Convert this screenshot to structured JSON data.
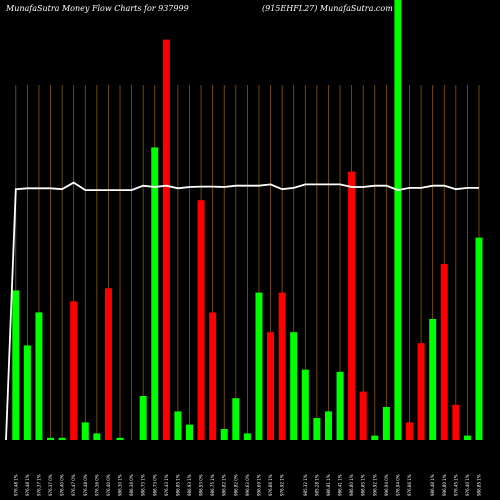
{
  "header": {
    "title_left": "MunafaSutra  Money Flow  Charts for 937999",
    "title_right": "(915EHFL27) MunafaSutra.com"
  },
  "chart_data": {
    "type": "bar",
    "title": "MunafaSutra  Money Flow  Charts for 937999",
    "subtitle": "(915EHFL27) MunafaSutra.com",
    "grid": true,
    "colors": {
      "up": "#00ff00",
      "down": "#ff0000",
      "grid": "#8a5a00",
      "line": "#ffffff",
      "background": "#000000"
    },
    "ylim": [
      0,
      100
    ],
    "bars": [
      {
        "value": 34,
        "color": "up"
      },
      {
        "value": 21.5,
        "color": "up"
      },
      {
        "value": 29,
        "color": "up"
      },
      {
        "value": 0.5,
        "color": "up"
      },
      {
        "value": 0.5,
        "color": "up"
      },
      {
        "value": 31.5,
        "color": "down"
      },
      {
        "value": 4,
        "color": "up"
      },
      {
        "value": 1.5,
        "color": "up"
      },
      {
        "value": 34.5,
        "color": "down"
      },
      {
        "value": 0.5,
        "color": "up"
      },
      {
        "value": 0,
        "color": "up"
      },
      {
        "value": 10,
        "color": "up"
      },
      {
        "value": 66.5,
        "color": "up"
      },
      {
        "value": 91,
        "color": "down"
      },
      {
        "value": 6.5,
        "color": "up"
      },
      {
        "value": 3.5,
        "color": "up"
      },
      {
        "value": 54.5,
        "color": "down"
      },
      {
        "value": 29,
        "color": "down"
      },
      {
        "value": 2.5,
        "color": "up"
      },
      {
        "value": 9.5,
        "color": "up"
      },
      {
        "value": 1.5,
        "color": "up"
      },
      {
        "value": 33.5,
        "color": "up"
      },
      {
        "value": 24.5,
        "color": "down"
      },
      {
        "value": 33.5,
        "color": "down"
      },
      {
        "value": 24.5,
        "color": "up"
      },
      {
        "value": 16,
        "color": "up"
      },
      {
        "value": 5,
        "color": "up"
      },
      {
        "value": 6.5,
        "color": "up"
      },
      {
        "value": 15.5,
        "color": "up"
      },
      {
        "value": 61,
        "color": "down"
      },
      {
        "value": 11,
        "color": "down"
      },
      {
        "value": 1,
        "color": "up"
      },
      {
        "value": 7.5,
        "color": "up"
      },
      {
        "value": 100,
        "color": "up"
      },
      {
        "value": 4,
        "color": "down"
      },
      {
        "value": 22,
        "color": "down"
      },
      {
        "value": 27.5,
        "color": "up"
      },
      {
        "value": 40,
        "color": "down"
      },
      {
        "value": 8,
        "color": "down"
      },
      {
        "value": 1,
        "color": "up"
      },
      {
        "value": 46,
        "color": "up"
      }
    ],
    "line": [
      0,
      57,
      57.2,
      57.2,
      57.2,
      57,
      58.5,
      56.8,
      56.8,
      56.8,
      56.8,
      56.8,
      57.8,
      57.5,
      57.8,
      57.2,
      57.5,
      57.6,
      57.6,
      57.5,
      57.8,
      57.8,
      57.8,
      58.1,
      57,
      57.3,
      58.1,
      58.1,
      58.1,
      58.1,
      57.5,
      57.5,
      57.8,
      57.8,
      56.8,
      57.3,
      57.3,
      57.8,
      57.8,
      57,
      57.3,
      57.3
    ],
    "x_labels": [
      "976.48 1%",
      "976.48 1%",
      "976.37 1%",
      "976.37 0%",
      "976.40 0%",
      "976.47 0%",
      "976.48 0%",
      "976.36 0%",
      "976.40 0%",
      "986.30 1%",
      "986.36 0%",
      "986.73 1%",
      "986.73 0%",
      "976.43 1%",
      "986.85 1%",
      "986.93 1%",
      "986.93 0%",
      "986.75 1%",
      "986.82 1%",
      "986.82 0%",
      "996.63 0%",
      "996.69 1%",
      "976.86 1%",
      "976.92 1%",
      "",
      "985.32 1%",
      "985.28 1%",
      "986.81 1%",
      "986.41 1%",
      "986.80 1%",
      "986.85 1%",
      "996.92 1%",
      "996.94 0%",
      "976.94 0%",
      "976.86 1%",
      "",
      "986.48 1%",
      "996.80 1%",
      "976.45 1%",
      "976.40 1%",
      "986.85 1%"
    ]
  }
}
